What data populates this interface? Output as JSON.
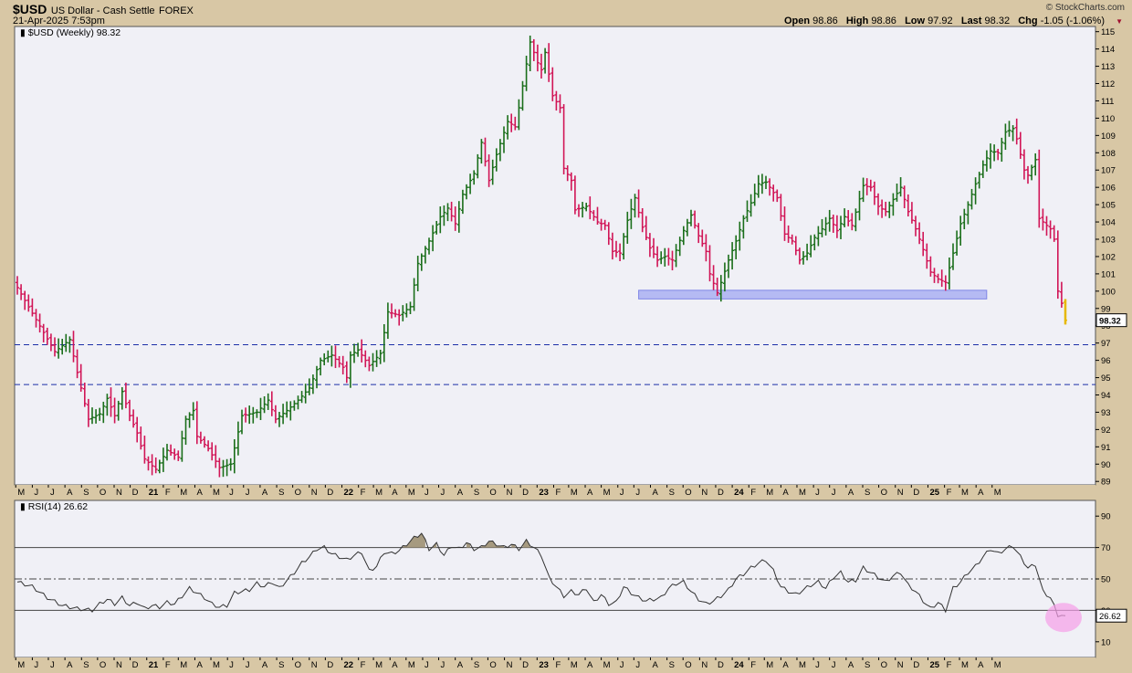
{
  "header": {
    "symbol": "$USD",
    "name": "US Dollar - Cash Settle",
    "exchange": "FOREX",
    "timestamp": "21-Apr-2025 7:53pm",
    "open_label": "Open",
    "open": "98.86",
    "high_label": "High",
    "high": "98.86",
    "low_label": "Low",
    "low": "97.92",
    "last_label": "Last",
    "last": "98.32",
    "chg_label": "Chg",
    "chg": "-1.05 (-1.06%)",
    "copyright": "© StockCharts.com"
  },
  "chart_data": [
    {
      "type": "ohlc",
      "title": "$USD (Weekly) 98.32",
      "last_value_label": "98.32",
      "ylim": [
        88.8,
        115.3
      ],
      "y_ticks": [
        89,
        90,
        91,
        92,
        93,
        94,
        95,
        96,
        97,
        98,
        99,
        100,
        101,
        102,
        103,
        104,
        105,
        106,
        107,
        108,
        109,
        110,
        111,
        112,
        113,
        114,
        115
      ],
      "colors": {
        "up": "#1a6e1a",
        "down": "#d11556",
        "last_bar": "#e6b800",
        "support_zone": "#aab0f2",
        "support_dash": "#1c2fa8"
      },
      "horizontal_lines": [
        96.9,
        94.6
      ],
      "support_zone": {
        "y_low": 99.55,
        "y_high": 100.05,
        "x_from": "2023-07-10",
        "x_to": "2025-04-14"
      },
      "x_start": "2020-05-04",
      "x_end": "2025-05-31",
      "closes": [
        [
          0,
          100.2
        ],
        [
          10,
          96.5
        ],
        [
          14,
          97.2
        ],
        [
          16,
          95.3
        ],
        [
          19,
          92.6
        ],
        [
          22,
          92.9
        ],
        [
          24,
          93.8
        ],
        [
          26,
          92.8
        ],
        [
          28,
          94.2
        ],
        [
          30,
          92.8
        ],
        [
          32,
          91.8
        ],
        [
          34,
          90.3
        ],
        [
          37,
          89.7
        ],
        [
          40,
          90.8
        ],
        [
          43,
          90.4
        ],
        [
          45,
          92.6
        ],
        [
          47,
          93.1
        ],
        [
          48,
          91.6
        ],
        [
          51,
          90.9
        ],
        [
          54,
          89.8
        ],
        [
          57,
          90.0
        ],
        [
          60,
          92.8
        ],
        [
          64,
          93.0
        ],
        [
          67,
          93.7
        ],
        [
          69,
          92.6
        ],
        [
          72,
          93.1
        ],
        [
          75,
          93.7
        ],
        [
          78,
          94.4
        ],
        [
          81,
          96.0
        ],
        [
          84,
          96.3
        ],
        [
          87,
          95.6
        ],
        [
          88,
          95.0
        ],
        [
          89,
          96.3
        ],
        [
          91,
          96.6
        ],
        [
          94,
          95.7
        ],
        [
          97,
          96.4
        ],
        [
          99,
          98.8
        ],
        [
          102,
          98.6
        ],
        [
          105,
          99.1
        ],
        [
          107,
          101.6
        ],
        [
          110,
          102.9
        ],
        [
          113,
          104.3
        ],
        [
          115,
          104.8
        ],
        [
          117,
          103.9
        ],
        [
          119,
          105.6
        ],
        [
          122,
          106.8
        ],
        [
          124,
          108.6
        ],
        [
          126,
          106.4
        ],
        [
          128,
          107.9
        ],
        [
          131,
          109.8
        ],
        [
          133,
          109.5
        ],
        [
          134,
          110.6
        ],
        [
          137,
          114.4
        ],
        [
          139,
          113.2
        ],
        [
          140,
          112.8
        ],
        [
          141,
          113.8
        ],
        [
          143,
          111.3
        ],
        [
          145,
          110.6
        ],
        [
          146,
          107.1
        ],
        [
          148,
          106.4
        ],
        [
          149,
          104.7
        ],
        [
          152,
          104.9
        ],
        [
          155,
          104.0
        ],
        [
          157,
          103.8
        ],
        [
          159,
          102.3
        ],
        [
          161,
          102.2
        ],
        [
          163,
          104.1
        ],
        [
          165,
          105.4
        ],
        [
          167,
          103.7
        ],
        [
          169,
          102.5
        ],
        [
          171,
          101.8
        ],
        [
          173,
          102.0
        ],
        [
          175,
          101.8
        ],
        [
          178,
          103.5
        ],
        [
          180,
          104.4
        ],
        [
          182,
          103.2
        ],
        [
          184,
          102.3
        ],
        [
          185,
          101.0
        ],
        [
          187,
          99.9
        ],
        [
          188,
          100.5
        ],
        [
          190,
          101.8
        ],
        [
          192,
          102.9
        ],
        [
          194,
          104.2
        ],
        [
          196,
          105.1
        ],
        [
          198,
          106.2
        ],
        [
          200,
          106.3
        ],
        [
          203,
          105.4
        ],
        [
          205,
          103.3
        ],
        [
          207,
          102.9
        ],
        [
          209,
          101.8
        ],
        [
          211,
          102.2
        ],
        [
          213,
          103.1
        ],
        [
          215,
          103.6
        ],
        [
          217,
          104.2
        ],
        [
          219,
          103.5
        ],
        [
          221,
          104.3
        ],
        [
          223,
          103.8
        ],
        [
          226,
          106.1
        ],
        [
          228,
          106.0
        ],
        [
          230,
          104.9
        ],
        [
          232,
          104.6
        ],
        [
          234,
          105.3
        ],
        [
          236,
          106.0
        ],
        [
          238,
          104.6
        ],
        [
          240,
          103.6
        ],
        [
          242,
          102.4
        ],
        [
          244,
          101.1
        ],
        [
          246,
          100.7
        ],
        [
          248,
          100.5
        ],
        [
          250,
          102.2
        ],
        [
          252,
          103.9
        ],
        [
          254,
          105.0
        ],
        [
          256,
          106.2
        ],
        [
          258,
          107.3
        ],
        [
          260,
          108.1
        ],
        [
          262,
          108.0
        ],
        [
          264,
          109.2
        ],
        [
          266,
          109.4
        ],
        [
          267,
          108.8
        ],
        [
          269,
          107.0
        ],
        [
          270,
          106.7
        ],
        [
          272,
          107.6
        ],
        [
          273,
          104.2
        ],
        [
          275,
          103.8
        ],
        [
          276,
          103.6
        ],
        [
          277,
          103.0
        ],
        [
          278,
          100.0
        ],
        [
          279,
          99.3
        ],
        [
          280,
          98.32
        ]
      ]
    },
    {
      "type": "line",
      "title": "RSI(14) 26.62",
      "last_value_label": "26.62",
      "ylim": [
        0,
        100
      ],
      "y_ticks": [
        10,
        30,
        50,
        70,
        90
      ],
      "overbought": 70,
      "midline": 50,
      "oversold": 30,
      "colors": {
        "line": "#333333",
        "fill_over": "#a69a80",
        "highlight_circle": "#f59ee8"
      },
      "x_start": "2020-05-04",
      "values": [
        [
          0,
          48
        ],
        [
          4,
          45
        ],
        [
          8,
          38
        ],
        [
          12,
          33
        ],
        [
          16,
          31
        ],
        [
          20,
          30
        ],
        [
          22,
          34
        ],
        [
          24,
          37
        ],
        [
          26,
          34
        ],
        [
          28,
          38
        ],
        [
          30,
          33
        ],
        [
          32,
          35
        ],
        [
          34,
          31
        ],
        [
          36,
          33
        ],
        [
          38,
          32
        ],
        [
          40,
          35
        ],
        [
          42,
          34
        ],
        [
          44,
          39
        ],
        [
          46,
          44
        ],
        [
          48,
          41
        ],
        [
          50,
          38
        ],
        [
          52,
          34
        ],
        [
          54,
          32
        ],
        [
          56,
          33
        ],
        [
          58,
          41
        ],
        [
          60,
          42
        ],
        [
          62,
          43
        ],
        [
          64,
          47
        ],
        [
          66,
          45
        ],
        [
          68,
          48
        ],
        [
          70,
          44
        ],
        [
          72,
          49
        ],
        [
          74,
          54
        ],
        [
          76,
          60
        ],
        [
          78,
          64
        ],
        [
          80,
          69
        ],
        [
          82,
          70
        ],
        [
          84,
          66
        ],
        [
          86,
          64
        ],
        [
          88,
          62
        ],
        [
          90,
          65
        ],
        [
          92,
          67
        ],
        [
          94,
          55
        ],
        [
          96,
          58
        ],
        [
          98,
          67
        ],
        [
          100,
          66
        ],
        [
          102,
          68
        ],
        [
          104,
          72
        ],
        [
          106,
          76
        ],
        [
          108,
          79
        ],
        [
          110,
          69
        ],
        [
          112,
          72
        ],
        [
          114,
          65
        ],
        [
          116,
          71
        ],
        [
          118,
          69
        ],
        [
          120,
          73
        ],
        [
          122,
          69
        ],
        [
          124,
          70
        ],
        [
          126,
          74
        ],
        [
          128,
          72
        ],
        [
          130,
          70
        ],
        [
          132,
          72
        ],
        [
          134,
          69
        ],
        [
          136,
          74
        ],
        [
          138,
          70
        ],
        [
          140,
          65
        ],
        [
          142,
          51
        ],
        [
          144,
          45
        ],
        [
          146,
          39
        ],
        [
          148,
          42
        ],
        [
          150,
          40
        ],
        [
          152,
          44
        ],
        [
          154,
          35
        ],
        [
          156,
          40
        ],
        [
          158,
          34
        ],
        [
          160,
          35
        ],
        [
          162,
          45
        ],
        [
          164,
          41
        ],
        [
          166,
          38
        ],
        [
          168,
          36
        ],
        [
          170,
          37
        ],
        [
          172,
          38
        ],
        [
          174,
          44
        ],
        [
          176,
          47
        ],
        [
          178,
          48
        ],
        [
          180,
          42
        ],
        [
          182,
          37
        ],
        [
          184,
          34
        ],
        [
          186,
          36
        ],
        [
          188,
          39
        ],
        [
          190,
          43
        ],
        [
          192,
          50
        ],
        [
          194,
          53
        ],
        [
          196,
          57
        ],
        [
          198,
          60
        ],
        [
          200,
          62
        ],
        [
          202,
          55
        ],
        [
          204,
          45
        ],
        [
          206,
          42
        ],
        [
          208,
          40
        ],
        [
          210,
          43
        ],
        [
          212,
          46
        ],
        [
          214,
          48
        ],
        [
          216,
          44
        ],
        [
          218,
          51
        ],
        [
          220,
          54
        ],
        [
          222,
          48
        ],
        [
          224,
          49
        ],
        [
          226,
          57
        ],
        [
          228,
          54
        ],
        [
          230,
          51
        ],
        [
          232,
          48
        ],
        [
          234,
          52
        ],
        [
          236,
          54
        ],
        [
          238,
          46
        ],
        [
          240,
          42
        ],
        [
          242,
          36
        ],
        [
          244,
          31
        ],
        [
          246,
          35
        ],
        [
          248,
          30
        ],
        [
          250,
          44
        ],
        [
          252,
          48
        ],
        [
          254,
          54
        ],
        [
          256,
          58
        ],
        [
          258,
          64
        ],
        [
          260,
          69
        ],
        [
          262,
          66
        ],
        [
          264,
          69
        ],
        [
          266,
          71
        ],
        [
          268,
          64
        ],
        [
          270,
          57
        ],
        [
          272,
          59
        ],
        [
          274,
          42
        ],
        [
          276,
          38
        ],
        [
          278,
          27
        ],
        [
          280,
          26.62
        ]
      ]
    }
  ]
}
